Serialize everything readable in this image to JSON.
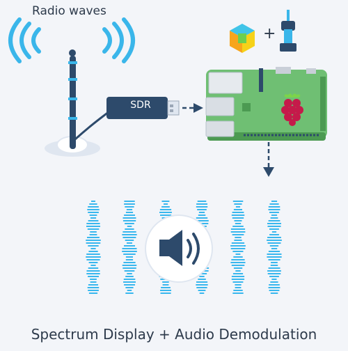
{
  "header": {
    "radio_label": "Radio waves"
  },
  "sdr": {
    "label": "SDR"
  },
  "software": {
    "plus": "+"
  },
  "footer": {
    "title": "Spectrum Display + Audio Demodulation"
  },
  "colors": {
    "wave": "#3ab6ea",
    "dark": "#2d4a6b",
    "board": "#6fbf73",
    "board_dark": "#4c9a52",
    "raspberry": "#c51a4a",
    "spectrum": "#38b7ee",
    "text": "#2d3a4b"
  },
  "icons": [
    "wave-icon",
    "antenna-icon",
    "usb-sdr-icon",
    "raspberry-pi-board-icon",
    "raspberry-logo-icon",
    "cube-icon",
    "syringe-icon",
    "speaker-icon",
    "arrow-icon"
  ]
}
